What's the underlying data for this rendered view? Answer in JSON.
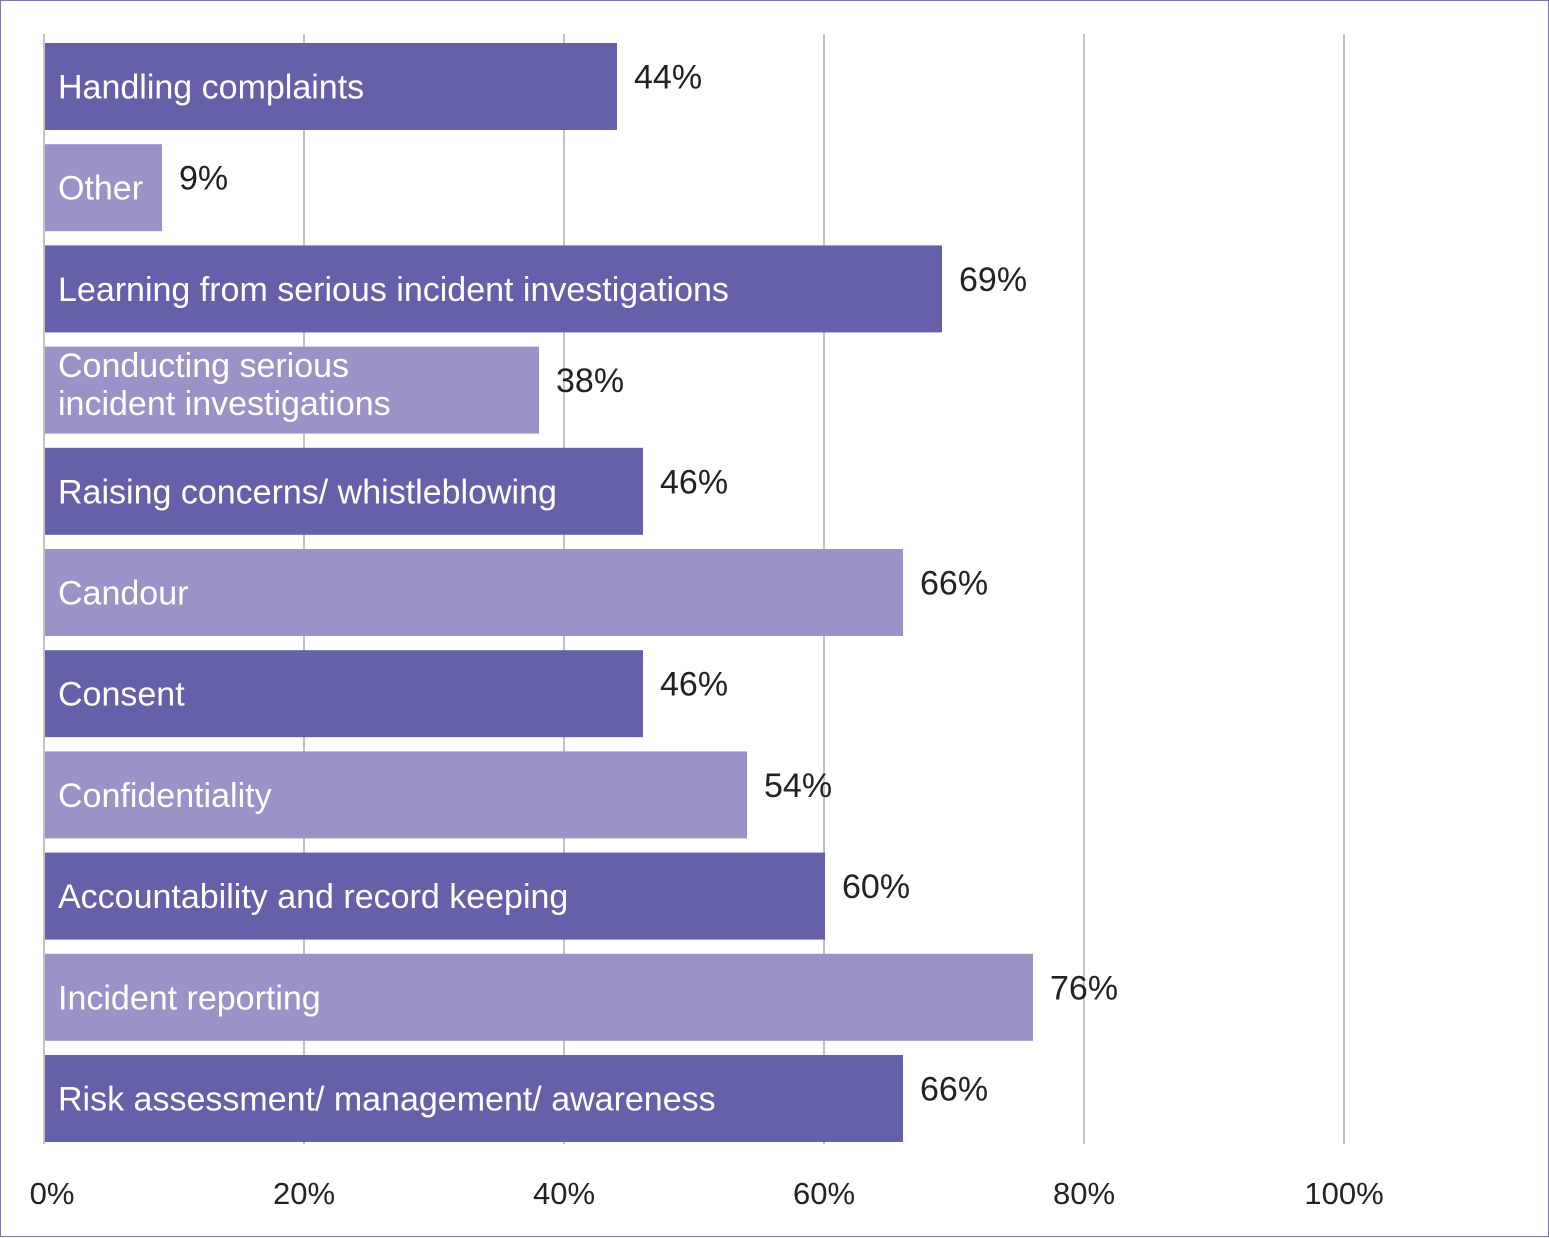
{
  "chart_data": {
    "type": "bar",
    "orientation": "horizontal",
    "categories": [
      [
        "Handling complaints"
      ],
      [
        "Other"
      ],
      [
        "Learning from serious incident investigations"
      ],
      [
        "Conducting serious",
        "incident investigations"
      ],
      [
        "Raising concerns/ whistleblowing"
      ],
      [
        "Candour"
      ],
      [
        "Consent"
      ],
      [
        "Confidentiality"
      ],
      [
        "Accountability and record keeping"
      ],
      [
        "Incident reporting"
      ],
      [
        "Risk assessment/ management/ awareness"
      ]
    ],
    "values": [
      44,
      9,
      69,
      38,
      46,
      66,
      46,
      54,
      60,
      76,
      66
    ],
    "value_labels": [
      "44%",
      "9%",
      "69%",
      "38%",
      "46%",
      "66%",
      "46%",
      "54%",
      "60%",
      "76%",
      "66%"
    ],
    "bar_colors": [
      "#6460aa",
      "#9a93c8",
      "#6460aa",
      "#9a93c8",
      "#6460aa",
      "#9a93c8",
      "#6460aa",
      "#9a93c8",
      "#6460aa",
      "#9a93c8",
      "#6460aa"
    ],
    "xlim": [
      0,
      100
    ],
    "xticks": [
      0,
      20,
      40,
      60,
      80,
      100
    ],
    "xtick_labels": [
      "0%",
      "20%",
      "40%",
      "60%",
      "80%",
      "100%"
    ],
    "grid": true,
    "legend": "none"
  }
}
